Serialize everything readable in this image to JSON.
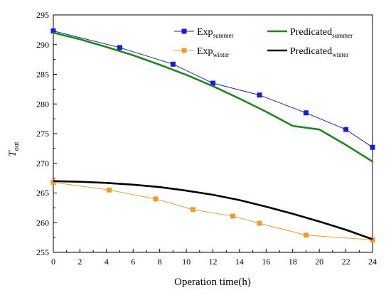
{
  "chart_data": {
    "type": "line",
    "xlabel": "Operation time(h)",
    "ylabel": "T",
    "ylabel_sub": "out",
    "xlim": [
      0,
      24
    ],
    "ylim": [
      255,
      295
    ],
    "xticks": [
      0,
      2,
      4,
      6,
      8,
      10,
      12,
      14,
      16,
      18,
      20,
      22,
      24
    ],
    "yticks": [
      255,
      260,
      265,
      270,
      275,
      280,
      285,
      290,
      295
    ],
    "grid": false,
    "legend_position": "top",
    "series": [
      {
        "key": "exp_summer",
        "name": "Exp",
        "name_sub": "summer",
        "color": "#1a1adc",
        "marker": "square",
        "style": "line-marker",
        "x": [
          0,
          5,
          9,
          12,
          15.5,
          19,
          22,
          24
        ],
        "y": [
          292.3,
          289.5,
          286.7,
          283.5,
          281.5,
          278.5,
          275.7,
          272.7
        ]
      },
      {
        "key": "pred_summer",
        "name": "Predicated",
        "name_sub": "summer",
        "color": "#1a8a1a",
        "marker": "none",
        "style": "thick-line",
        "x": [
          0,
          2,
          4,
          6,
          8,
          10,
          12,
          14,
          16,
          18,
          20,
          22,
          24
        ],
        "y": [
          292.0,
          290.9,
          289.6,
          288.2,
          286.6,
          284.9,
          283.0,
          280.9,
          278.7,
          276.3,
          275.7,
          273.1,
          270.3
        ]
      },
      {
        "key": "exp_winter",
        "name": "Exp",
        "name_sub": "winter",
        "color": "#f39a2e",
        "marker": "square",
        "style": "line-marker",
        "x": [
          0,
          4.2,
          7.7,
          10.5,
          13.5,
          15.5,
          19,
          24
        ],
        "y": [
          266.8,
          265.5,
          264.0,
          262.2,
          261.1,
          259.9,
          257.9,
          257.1
        ]
      },
      {
        "key": "pred_winter",
        "name": "Predicated",
        "name_sub": "winter",
        "color": "#000000",
        "marker": "none",
        "style": "thick-line",
        "x": [
          0,
          2,
          4,
          6,
          8,
          10,
          12,
          14,
          16,
          18,
          20,
          22,
          24
        ],
        "y": [
          267.0,
          266.9,
          266.7,
          266.4,
          266.0,
          265.4,
          264.7,
          263.8,
          262.7,
          261.5,
          260.2,
          258.8,
          257.2
        ]
      }
    ]
  }
}
